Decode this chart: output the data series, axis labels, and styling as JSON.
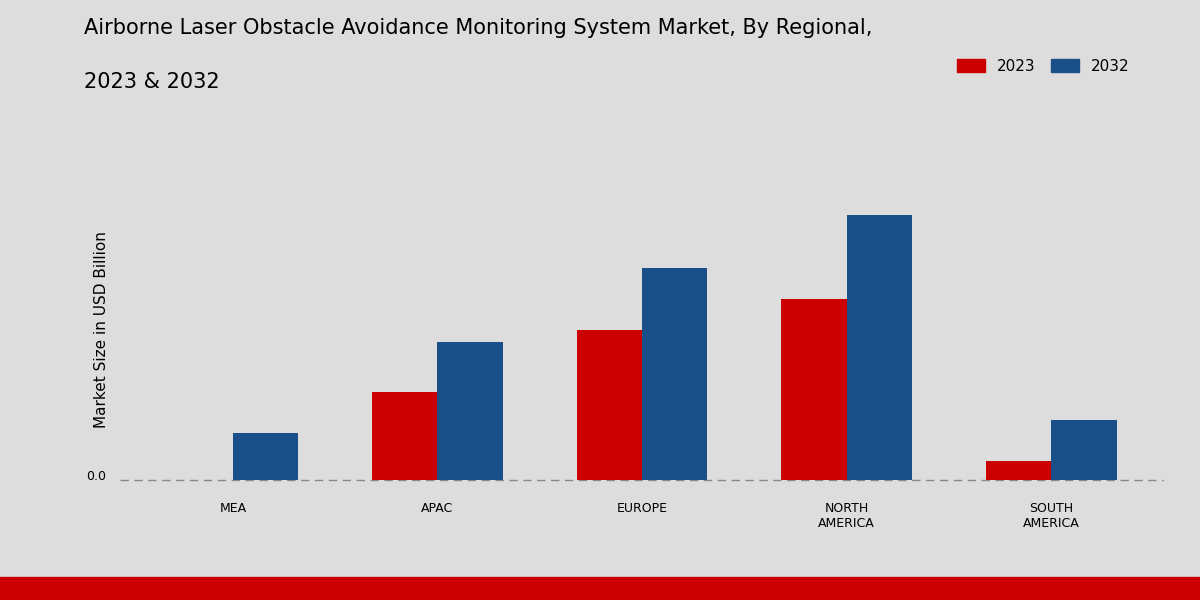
{
  "title_line1": "Airborne Laser Obstacle Avoidance Monitoring System Market, By Regional,",
  "title_line2": "2023 & 2032",
  "ylabel": "Market Size in USD Billion",
  "categories": [
    "MEA",
    "APAC",
    "EUROPE",
    "NORTH\nAMERICA",
    "SOUTH\nAMERICA"
  ],
  "values_2023": [
    0.0,
    0.28,
    0.48,
    0.58,
    0.06
  ],
  "values_2032": [
    0.15,
    0.44,
    0.68,
    0.85,
    0.19
  ],
  "color_2023": "#CC0000",
  "color_2032": "#1B4F8A",
  "zero_label": "0.0",
  "legend_labels": [
    "2023",
    "2032"
  ],
  "background_color_top": "#FFFFFF",
  "background_color_bottom": "#CCCCCC",
  "ylim_min": -0.04,
  "ylim_max": 1.0,
  "bar_width": 0.32,
  "title_fontsize": 15,
  "axis_label_fontsize": 11,
  "tick_fontsize": 9,
  "legend_fontsize": 11
}
